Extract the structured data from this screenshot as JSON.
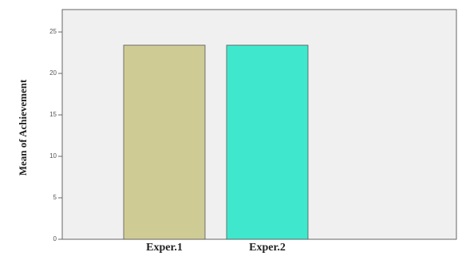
{
  "chart_data": {
    "type": "bar",
    "y_label": "Mean of Achievement",
    "categories": [
      "Exper.1",
      "Exper.2"
    ],
    "values": [
      23.4,
      23.4
    ],
    "colors": [
      "#cfcb95",
      "#3fe8cc"
    ],
    "ylim": [
      0,
      27.7
    ],
    "yticks": [
      0,
      5,
      10,
      15,
      20,
      25
    ]
  }
}
